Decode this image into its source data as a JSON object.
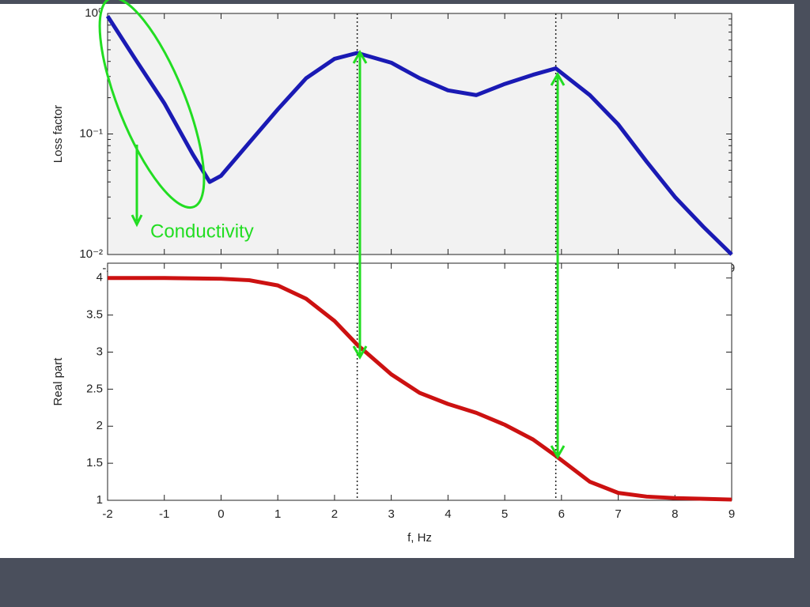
{
  "chart_data": [
    {
      "type": "line",
      "ylabel": "Loss factor",
      "log_y": true,
      "x": [
        -2,
        -1.5,
        -1,
        -0.5,
        -0.2,
        0,
        0.5,
        1,
        1.5,
        2,
        2.4,
        3,
        3.5,
        4,
        4.5,
        5,
        5.5,
        5.9,
        6.5,
        7,
        7.5,
        8,
        8.5,
        9
      ],
      "series": [
        {
          "name": "Loss factor",
          "color": "#1a1ab4",
          "values": [
            0.95,
            0.41,
            0.18,
            0.068,
            0.04,
            0.045,
            0.085,
            0.16,
            0.29,
            0.42,
            0.47,
            0.39,
            0.29,
            0.23,
            0.21,
            0.26,
            0.31,
            0.35,
            0.21,
            0.12,
            0.059,
            0.03,
            0.017,
            0.01
          ]
        }
      ],
      "xlim": [
        -2,
        9
      ],
      "xticks": [
        -2,
        -1,
        0,
        1,
        2,
        3,
        4,
        5,
        6,
        7,
        8,
        9
      ],
      "ylim": [
        0.01,
        1
      ],
      "yticks": [
        {
          "value": 0.01,
          "label": "10⁻²"
        },
        {
          "value": 0.1,
          "label": "10⁻¹"
        },
        {
          "value": 1,
          "label": "10⁰"
        }
      ],
      "vlines": [
        2.4,
        5.9
      ],
      "annotation": "Conductivity",
      "background": "#f2f2f2"
    },
    {
      "type": "line",
      "ylabel": "Real part",
      "xlabel": "f, Hz",
      "log_y": false,
      "x": [
        -2,
        -1,
        0,
        0.5,
        1,
        1.5,
        2,
        2.4,
        3,
        3.5,
        4,
        4.5,
        5,
        5.5,
        5.9,
        6.5,
        7,
        7.5,
        8,
        8.5,
        9
      ],
      "series": [
        {
          "name": "Real part",
          "color": "#cc1111",
          "values": [
            4,
            4,
            3.99,
            3.97,
            3.9,
            3.72,
            3.42,
            3.1,
            2.7,
            2.45,
            2.3,
            2.18,
            2.02,
            1.82,
            1.6,
            1.25,
            1.1,
            1.05,
            1.03,
            1.02,
            1.01
          ]
        }
      ],
      "xlim": [
        -2,
        9
      ],
      "xticks": [
        -2,
        -1,
        0,
        1,
        2,
        3,
        4,
        5,
        6,
        7,
        8,
        9
      ],
      "ylim": [
        1,
        4.2
      ],
      "yticks": [
        1,
        1.5,
        2,
        2.5,
        3,
        3.5,
        4
      ],
      "vlines": [
        2.4,
        5.9
      ],
      "background": "#ffffff"
    }
  ]
}
